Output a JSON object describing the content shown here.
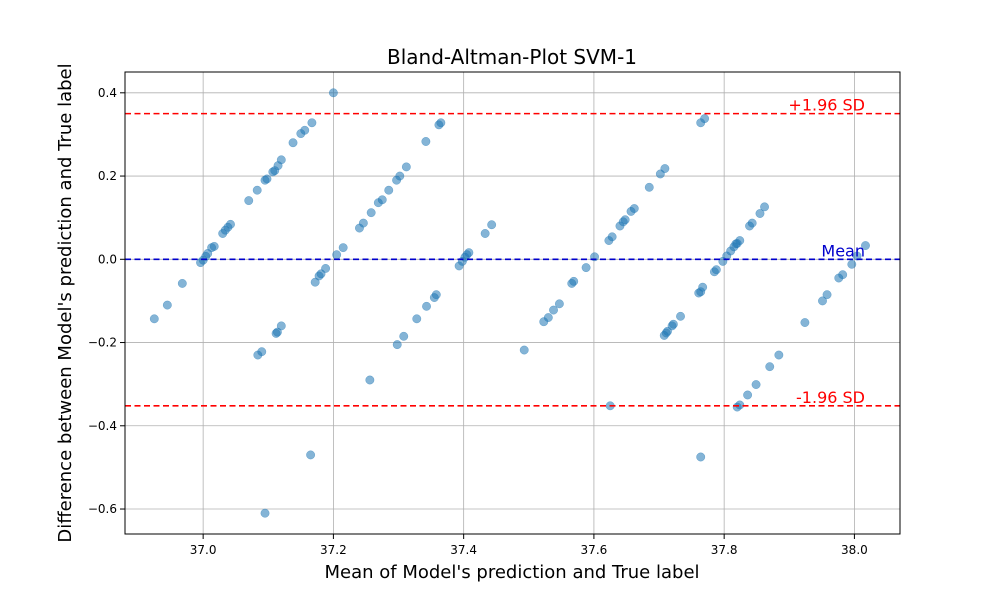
{
  "chart_data": {
    "type": "scatter",
    "title": "Bland-Altman-Plot SVM-1",
    "xlabel": "Mean of Model's prediction and True label",
    "ylabel": "Difference between Model's prediction and True label",
    "xlim": [
      36.88,
      38.07
    ],
    "ylim": [
      -0.66,
      0.45
    ],
    "xticks": [
      37.0,
      37.2,
      37.4,
      37.6,
      37.8,
      38.0
    ],
    "xtick_labels": [
      "37.0",
      "37.2",
      "37.4",
      "37.6",
      "37.8",
      "38.0"
    ],
    "yticks": [
      0.4,
      0.2,
      0.0,
      -0.2,
      -0.4,
      -0.6
    ],
    "ytick_labels": [
      "0.4",
      "0.2",
      "0.0",
      "−0.2",
      "−0.4",
      "−0.6"
    ],
    "grid": true,
    "colors": {
      "points": "#1f77b4",
      "sd_lines": "#ff0000",
      "mean_line": "#0000cc",
      "grid": "#b0b0b0"
    },
    "reference_lines": [
      {
        "y": 0.35,
        "label": "+1.96 SD",
        "color": "#ff0000"
      },
      {
        "y": 0.0,
        "label": "Mean",
        "color": "#0000cc"
      },
      {
        "y": -0.352,
        "label": "-1.96 SD",
        "color": "#ff0000"
      }
    ],
    "points": [
      {
        "x": 36.925,
        "y": -0.143
      },
      {
        "x": 36.945,
        "y": -0.11
      },
      {
        "x": 36.968,
        "y": -0.058
      },
      {
        "x": 36.996,
        "y": -0.008
      },
      {
        "x": 37.0,
        "y": -0.002
      },
      {
        "x": 37.004,
        "y": 0.007
      },
      {
        "x": 37.007,
        "y": 0.014
      },
      {
        "x": 37.013,
        "y": 0.028
      },
      {
        "x": 37.017,
        "y": 0.031
      },
      {
        "x": 37.03,
        "y": 0.062
      },
      {
        "x": 37.034,
        "y": 0.07
      },
      {
        "x": 37.038,
        "y": 0.077
      },
      {
        "x": 37.042,
        "y": 0.084
      },
      {
        "x": 37.07,
        "y": 0.141
      },
      {
        "x": 37.083,
        "y": 0.166
      },
      {
        "x": 37.095,
        "y": 0.19
      },
      {
        "x": 37.098,
        "y": 0.193
      },
      {
        "x": 37.107,
        "y": 0.21
      },
      {
        "x": 37.11,
        "y": 0.213
      },
      {
        "x": 37.115,
        "y": 0.225
      },
      {
        "x": 37.12,
        "y": 0.239
      },
      {
        "x": 37.138,
        "y": 0.28
      },
      {
        "x": 37.15,
        "y": 0.302
      },
      {
        "x": 37.156,
        "y": 0.31
      },
      {
        "x": 37.167,
        "y": 0.328
      },
      {
        "x": 37.2,
        "y": 0.4
      },
      {
        "x": 37.084,
        "y": -0.23
      },
      {
        "x": 37.09,
        "y": -0.222
      },
      {
        "x": 37.112,
        "y": -0.178
      },
      {
        "x": 37.114,
        "y": -0.175
      },
      {
        "x": 37.12,
        "y": -0.16
      },
      {
        "x": 37.172,
        "y": -0.055
      },
      {
        "x": 37.178,
        "y": -0.04
      },
      {
        "x": 37.181,
        "y": -0.035
      },
      {
        "x": 37.188,
        "y": -0.022
      },
      {
        "x": 37.205,
        "y": 0.011
      },
      {
        "x": 37.215,
        "y": 0.028
      },
      {
        "x": 37.24,
        "y": 0.075
      },
      {
        "x": 37.246,
        "y": 0.087
      },
      {
        "x": 37.258,
        "y": 0.112
      },
      {
        "x": 37.269,
        "y": 0.136
      },
      {
        "x": 37.275,
        "y": 0.143
      },
      {
        "x": 37.285,
        "y": 0.166
      },
      {
        "x": 37.297,
        "y": 0.19
      },
      {
        "x": 37.302,
        "y": 0.2
      },
      {
        "x": 37.312,
        "y": 0.222
      },
      {
        "x": 37.342,
        "y": 0.283
      },
      {
        "x": 37.362,
        "y": 0.323
      },
      {
        "x": 37.365,
        "y": 0.328
      },
      {
        "x": 37.256,
        "y": -0.29
      },
      {
        "x": 37.298,
        "y": -0.205
      },
      {
        "x": 37.308,
        "y": -0.185
      },
      {
        "x": 37.328,
        "y": -0.143
      },
      {
        "x": 37.343,
        "y": -0.113
      },
      {
        "x": 37.355,
        "y": -0.092
      },
      {
        "x": 37.358,
        "y": -0.085
      },
      {
        "x": 37.393,
        "y": -0.016
      },
      {
        "x": 37.398,
        "y": -0.005
      },
      {
        "x": 37.402,
        "y": 0.005
      },
      {
        "x": 37.405,
        "y": 0.011
      },
      {
        "x": 37.408,
        "y": 0.016
      },
      {
        "x": 37.433,
        "y": 0.062
      },
      {
        "x": 37.443,
        "y": 0.083
      },
      {
        "x": 37.165,
        "y": -0.47
      },
      {
        "x": 37.095,
        "y": -0.61
      },
      {
        "x": 37.493,
        "y": -0.218
      },
      {
        "x": 37.523,
        "y": -0.15
      },
      {
        "x": 37.53,
        "y": -0.14
      },
      {
        "x": 37.538,
        "y": -0.122
      },
      {
        "x": 37.547,
        "y": -0.107
      },
      {
        "x": 37.566,
        "y": -0.058
      },
      {
        "x": 37.569,
        "y": -0.053
      },
      {
        "x": 37.588,
        "y": -0.02
      },
      {
        "x": 37.601,
        "y": 0.006
      },
      {
        "x": 37.623,
        "y": 0.045
      },
      {
        "x": 37.628,
        "y": 0.054
      },
      {
        "x": 37.64,
        "y": 0.08
      },
      {
        "x": 37.645,
        "y": 0.09
      },
      {
        "x": 37.648,
        "y": 0.095
      },
      {
        "x": 37.657,
        "y": 0.115
      },
      {
        "x": 37.662,
        "y": 0.122
      },
      {
        "x": 37.685,
        "y": 0.173
      },
      {
        "x": 37.702,
        "y": 0.205
      },
      {
        "x": 37.709,
        "y": 0.218
      },
      {
        "x": 37.764,
        "y": 0.328
      },
      {
        "x": 37.77,
        "y": 0.338
      },
      {
        "x": 37.625,
        "y": -0.352
      },
      {
        "x": 37.708,
        "y": -0.183
      },
      {
        "x": 37.711,
        "y": -0.177
      },
      {
        "x": 37.713,
        "y": -0.173
      },
      {
        "x": 37.72,
        "y": -0.16
      },
      {
        "x": 37.722,
        "y": -0.156
      },
      {
        "x": 37.733,
        "y": -0.137
      },
      {
        "x": 37.761,
        "y": -0.081
      },
      {
        "x": 37.764,
        "y": -0.078
      },
      {
        "x": 37.767,
        "y": -0.067
      },
      {
        "x": 37.785,
        "y": -0.03
      },
      {
        "x": 37.788,
        "y": -0.025
      },
      {
        "x": 37.798,
        "y": -0.005
      },
      {
        "x": 37.804,
        "y": 0.008
      },
      {
        "x": 37.81,
        "y": 0.02
      },
      {
        "x": 37.815,
        "y": 0.03
      },
      {
        "x": 37.818,
        "y": 0.037
      },
      {
        "x": 37.82,
        "y": 0.038
      },
      {
        "x": 37.824,
        "y": 0.045
      },
      {
        "x": 37.839,
        "y": 0.08
      },
      {
        "x": 37.843,
        "y": 0.087
      },
      {
        "x": 37.855,
        "y": 0.11
      },
      {
        "x": 37.862,
        "y": 0.126
      },
      {
        "x": 37.764,
        "y": -0.475
      },
      {
        "x": 37.82,
        "y": -0.355
      },
      {
        "x": 37.824,
        "y": -0.35
      },
      {
        "x": 37.836,
        "y": -0.326
      },
      {
        "x": 37.849,
        "y": -0.301
      },
      {
        "x": 37.87,
        "y": -0.258
      },
      {
        "x": 37.884,
        "y": -0.23
      },
      {
        "x": 37.924,
        "y": -0.152
      },
      {
        "x": 37.951,
        "y": -0.1
      },
      {
        "x": 37.958,
        "y": -0.085
      },
      {
        "x": 37.976,
        "y": -0.045
      },
      {
        "x": 37.982,
        "y": -0.037
      },
      {
        "x": 37.996,
        "y": -0.012
      },
      {
        "x": 38.004,
        "y": 0.008
      },
      {
        "x": 38.017,
        "y": 0.033
      }
    ]
  }
}
